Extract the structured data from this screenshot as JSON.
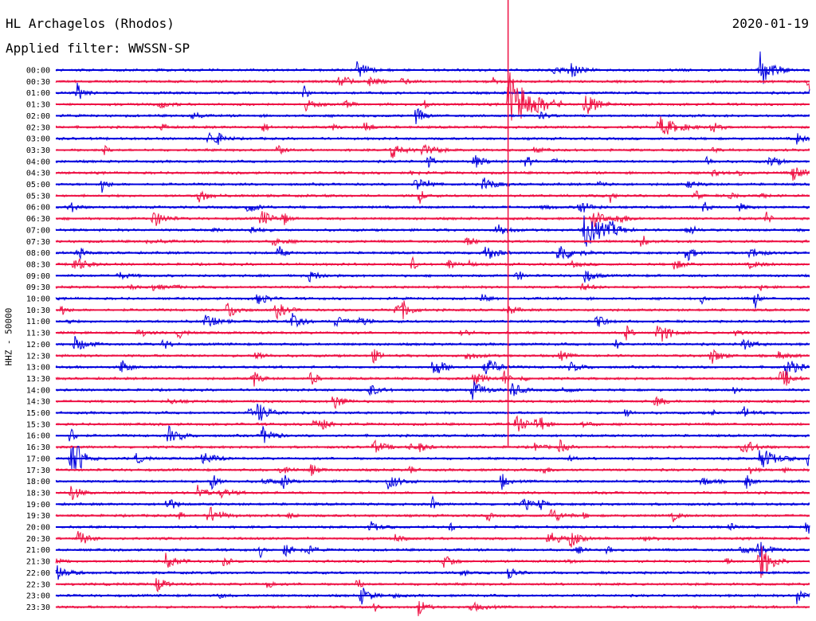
{
  "header": {
    "station": "HL Archagelos (Rhodos)",
    "date": "2020-01-19",
    "filter": "Applied filter: WWSSN-SP"
  },
  "channel_label": "HHZ - 50000",
  "chart_data": {
    "type": "line",
    "title": "HL Archagelos (Rhodos)",
    "ylabel": "HHZ - 50000",
    "row_interval_minutes": 30,
    "time_labels": [
      "00:00",
      "00:30",
      "01:00",
      "01:30",
      "02:00",
      "02:30",
      "03:00",
      "03:30",
      "04:00",
      "04:30",
      "05:00",
      "05:30",
      "06:00",
      "06:30",
      "07:00",
      "07:30",
      "08:00",
      "08:30",
      "09:00",
      "09:30",
      "10:00",
      "10:30",
      "11:00",
      "11:30",
      "12:00",
      "12:30",
      "13:00",
      "13:30",
      "14:00",
      "14:30",
      "15:00",
      "15:30",
      "16:00",
      "16:30",
      "17:00",
      "17:30",
      "18:00",
      "18:30",
      "19:00",
      "19:30",
      "20:00",
      "20:30",
      "21:00",
      "21:30",
      "22:00",
      "22:30",
      "23:00",
      "23:30"
    ],
    "series_colors": [
      "#0000dd",
      "#ee1144"
    ],
    "notable_events": [
      {
        "row": "00:00",
        "minute": 28,
        "amplitude": "large"
      },
      {
        "row": "01:30",
        "minute": 18,
        "amplitude": "very large"
      },
      {
        "row": "01:30",
        "minute": 21,
        "amplitude": "large"
      },
      {
        "row": "02:30",
        "minute": 24,
        "amplitude": "medium"
      },
      {
        "row": "07:00",
        "minute": 21,
        "amplitude": "large"
      },
      {
        "row": "08:00",
        "minute": 20,
        "amplitude": "medium"
      },
      {
        "row": "13:00",
        "minute": 15,
        "amplitude": "medium"
      },
      {
        "row": "15:00",
        "minute": 8,
        "amplitude": "medium"
      },
      {
        "row": "17:00",
        "minute": 28,
        "amplitude": "medium"
      },
      {
        "row": "21:30",
        "minute": 28,
        "amplitude": "large"
      }
    ]
  }
}
